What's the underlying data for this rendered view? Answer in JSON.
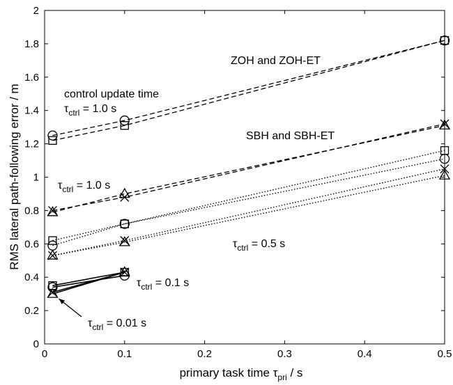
{
  "chart_data": {
    "type": "line",
    "xlabel": "primary task time τpri / s",
    "xlabel_parts": {
      "prefix": "primary task time ",
      "sym": "τ",
      "sub": "pri",
      "suffix": " / s"
    },
    "ylabel": "RMS lateral path-following error / m",
    "xlim": [
      0,
      0.5
    ],
    "ylim": [
      0,
      2
    ],
    "xticks": [
      0,
      0.1,
      0.2,
      0.3,
      0.4,
      0.5
    ],
    "xtick_labels": [
      "0",
      "0.1",
      "0.2",
      "0.3",
      "0.4",
      "0.5"
    ],
    "yticks": [
      0,
      0.2,
      0.4,
      0.6,
      0.8,
      1.0,
      1.2,
      1.4,
      1.6,
      1.8,
      2.0
    ],
    "ytick_labels": [
      "0",
      "0.2",
      "0.4",
      "0.6",
      "0.8",
      "1",
      "1.2",
      "1.4",
      "1.6",
      "1.8",
      "2"
    ],
    "grid": false,
    "series": [
      {
        "values": [
          [
            0.01,
            1.25
          ],
          [
            0.1,
            1.34
          ],
          [
            0.5,
            1.82
          ]
        ],
        "marker": "circle",
        "style": "dashed"
      },
      {
        "values": [
          [
            0.01,
            1.22
          ],
          [
            0.1,
            1.31
          ],
          [
            0.5,
            1.82
          ]
        ],
        "marker": "square",
        "style": "dashed"
      },
      {
        "values": [
          [
            0.01,
            0.8
          ],
          [
            0.1,
            0.88
          ],
          [
            0.5,
            1.32
          ]
        ],
        "marker": "x",
        "style": "dashed"
      },
      {
        "values": [
          [
            0.01,
            0.79
          ],
          [
            0.1,
            0.9
          ],
          [
            0.5,
            1.31
          ]
        ],
        "marker": "triangle",
        "style": "dashed"
      },
      {
        "values": [
          [
            0.01,
            0.62
          ],
          [
            0.1,
            0.72
          ],
          [
            0.5,
            1.16
          ]
        ],
        "marker": "square",
        "style": "dotted"
      },
      {
        "values": [
          [
            0.01,
            0.59
          ],
          [
            0.1,
            0.72
          ],
          [
            0.5,
            1.11
          ]
        ],
        "marker": "circle",
        "style": "dotted"
      },
      {
        "values": [
          [
            0.01,
            0.53
          ],
          [
            0.1,
            0.62
          ],
          [
            0.5,
            1.05
          ]
        ],
        "marker": "x",
        "style": "dotted"
      },
      {
        "values": [
          [
            0.01,
            0.53
          ],
          [
            0.1,
            0.61
          ],
          [
            0.5,
            1.01
          ]
        ],
        "marker": "triangle",
        "style": "dotted"
      },
      {
        "values": [
          [
            0.01,
            0.35
          ],
          [
            0.1,
            0.43
          ]
        ],
        "marker": "square",
        "style": "solid"
      },
      {
        "values": [
          [
            0.01,
            0.34
          ],
          [
            0.1,
            0.41
          ]
        ],
        "marker": "circle",
        "style": "solid"
      },
      {
        "values": [
          [
            0.01,
            0.31
          ],
          [
            0.1,
            0.43
          ]
        ],
        "marker": "x",
        "style": "solid"
      },
      {
        "values": [
          [
            0.01,
            0.3
          ],
          [
            0.1,
            0.43
          ]
        ],
        "marker": "triangle",
        "style": "solid"
      }
    ],
    "annotations": [
      {
        "id": "zoh",
        "text": "ZOH and ZOH-ET"
      },
      {
        "id": "cut",
        "text": "control update time"
      },
      {
        "id": "t10a",
        "sym": "τ",
        "sub": "ctrl",
        "text": " = 1.0 s"
      },
      {
        "id": "sbh",
        "text": "SBH and SBH-ET"
      },
      {
        "id": "t10b",
        "sym": "τ",
        "sub": "ctrl",
        "text": " = 1.0 s"
      },
      {
        "id": "t05",
        "sym": "τ",
        "sub": "ctrl",
        "text": " = 0.5 s"
      },
      {
        "id": "t01",
        "sym": "τ",
        "sub": "ctrl",
        "text": " = 0.1 s"
      },
      {
        "id": "t001",
        "sym": "τ",
        "sub": "ctrl",
        "text": " = 0.01 s"
      }
    ]
  }
}
